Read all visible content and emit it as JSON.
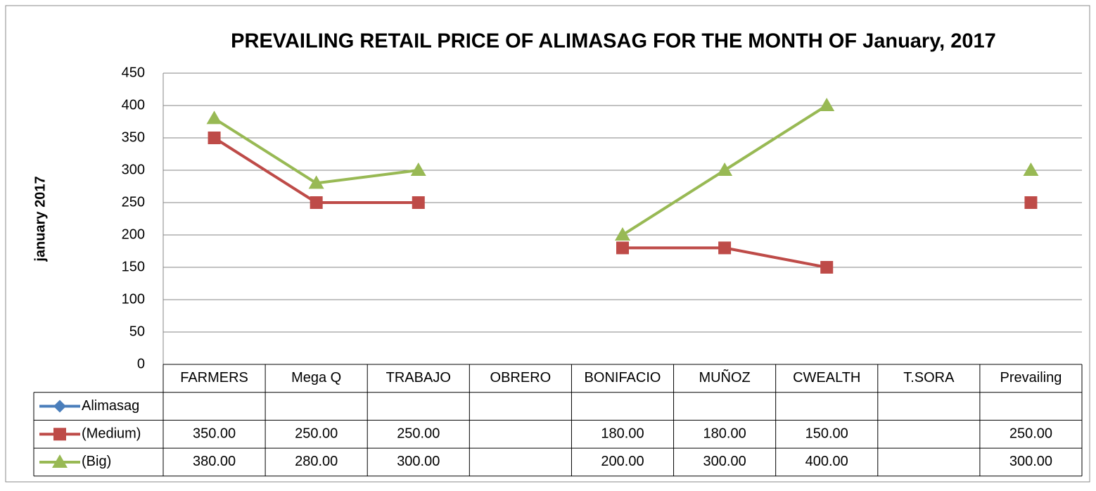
{
  "chart_data": {
    "type": "line",
    "title": "PREVAILING RETAIL PRICE OF ALIMASAG FOR THE MONTH OF January, 2017",
    "y_label": "january 2017",
    "categories": [
      "FARMERS",
      "Mega Q",
      "TRABAJO",
      "OBRERO",
      "BONIFACIO",
      "MUÑOZ",
      "CWEALTH",
      "T.SORA",
      "Prevailing"
    ],
    "series": [
      {
        "name": "Alimasag",
        "color": "#4a7ebb",
        "marker": "diamond",
        "values": [
          null,
          null,
          null,
          null,
          null,
          null,
          null,
          null,
          null
        ],
        "value_labels": [
          null,
          null,
          null,
          null,
          null,
          null,
          null,
          null,
          null
        ]
      },
      {
        "name": "(Medium)",
        "color": "#be4b48",
        "marker": "square",
        "values": [
          350,
          250,
          250,
          null,
          180,
          180,
          150,
          null,
          250
        ],
        "value_labels": [
          "350.00",
          "250.00",
          "250.00",
          null,
          "180.00",
          "180.00",
          "150.00",
          null,
          "250.00"
        ]
      },
      {
        "name": "(Big)",
        "color": "#98b954",
        "marker": "triangle",
        "values": [
          380,
          280,
          300,
          null,
          200,
          300,
          400,
          null,
          300
        ],
        "value_labels": [
          "380.00",
          "280.00",
          "300.00",
          null,
          "200.00",
          "300.00",
          "400.00",
          null,
          "300.00"
        ]
      }
    ],
    "ylim": [
      0,
      450
    ],
    "yticks": [
      0,
      50,
      100,
      150,
      200,
      250,
      300,
      350,
      400,
      450
    ],
    "grid": true
  }
}
